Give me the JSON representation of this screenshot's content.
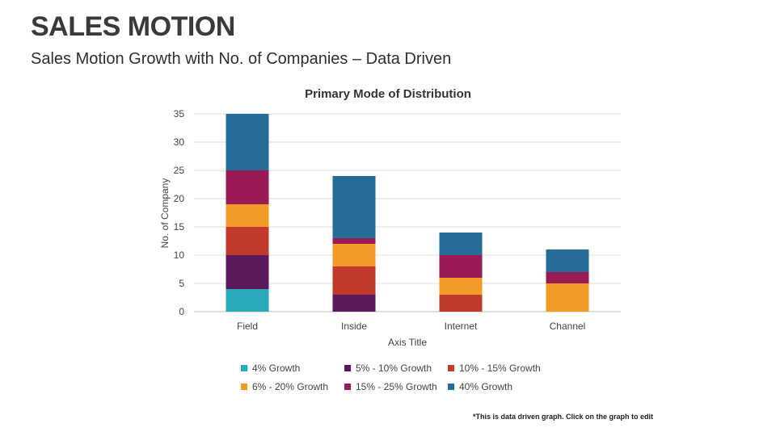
{
  "slide": {
    "title": "SALES MOTION",
    "subtitle": "Sales Motion Growth with No. of Companies – Data Driven",
    "footnote": "*This is data driven graph. Click on the graph to edit"
  },
  "chart_data": {
    "type": "bar",
    "stacked": true,
    "title": "Primary Mode of Distribution",
    "xlabel": "Axis Title",
    "ylabel": "No. of Company",
    "ylim": [
      0,
      35
    ],
    "yticks": [
      0,
      5,
      10,
      15,
      20,
      25,
      30,
      35
    ],
    "grid": true,
    "legend_position": "bottom",
    "categories": [
      "Field",
      "Inside",
      "Internet",
      "Channel"
    ],
    "series": [
      {
        "name": "4% Growth",
        "color": "#2aaab8",
        "values": [
          4,
          0,
          0,
          0
        ]
      },
      {
        "name": "5% - 10% Growth",
        "color": "#5a1a5c",
        "values": [
          6,
          3,
          0,
          0
        ]
      },
      {
        "name": "10% - 15% Growth",
        "color": "#c23a2c",
        "values": [
          5,
          5,
          3,
          0
        ]
      },
      {
        "name": "6% - 20% Growth",
        "color": "#f29b26",
        "values": [
          4,
          4,
          3,
          5
        ]
      },
      {
        "name": "15% - 25% Growth",
        "color": "#991a55",
        "values": [
          6,
          1,
          4,
          2
        ]
      },
      {
        "name": "40% Growth",
        "color": "#256c98",
        "values": [
          10,
          11,
          4,
          4
        ]
      }
    ],
    "legend_order": [
      0,
      1,
      2,
      3,
      4,
      5
    ]
  }
}
